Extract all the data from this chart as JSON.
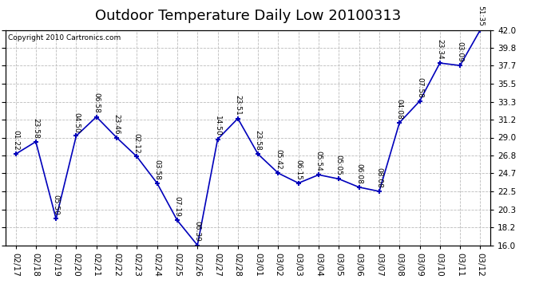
{
  "title": "Outdoor Temperature Daily Low 20100313",
  "copyright": "Copyright 2010 Cartronics.com",
  "x_labels": [
    "02/17",
    "02/18",
    "02/19",
    "02/20",
    "02/21",
    "02/22",
    "02/23",
    "02/24",
    "02/25",
    "02/26",
    "02/27",
    "02/28",
    "03/01",
    "03/02",
    "03/03",
    "03/04",
    "03/05",
    "03/06",
    "03/07",
    "03/08",
    "03/09",
    "03/10",
    "03/11",
    "03/12"
  ],
  "y_values": [
    27.0,
    28.5,
    19.2,
    29.2,
    31.5,
    29.0,
    26.7,
    23.5,
    19.0,
    16.0,
    28.8,
    31.3,
    27.0,
    24.7,
    23.5,
    24.5,
    24.0,
    23.0,
    22.5,
    30.8,
    33.4,
    38.0,
    37.7,
    42.0
  ],
  "annotations": [
    "01:22",
    "23:58",
    "05:50",
    "04:50",
    "06:58",
    "23:46",
    "02:12",
    "03:58",
    "07:19",
    "06:39",
    "14:50",
    "23:51",
    "23:58",
    "05:42",
    "06:15",
    "05:54",
    "05:05",
    "06:08",
    "08:08",
    "04:08",
    "07:58",
    "23:34",
    "03:09",
    "51:35"
  ],
  "ylim": [
    16.0,
    42.0
  ],
  "yticks": [
    16.0,
    18.2,
    20.3,
    22.5,
    24.7,
    26.8,
    29.0,
    31.2,
    33.3,
    35.5,
    37.7,
    39.8,
    42.0
  ],
  "line_color": "#0000BB",
  "marker_color": "#0000BB",
  "bg_color": "#ffffff",
  "grid_color": "#bbbbbb",
  "title_fontsize": 13,
  "label_fontsize": 7.5,
  "annot_fontsize": 6.5,
  "copyright_fontsize": 6.5
}
